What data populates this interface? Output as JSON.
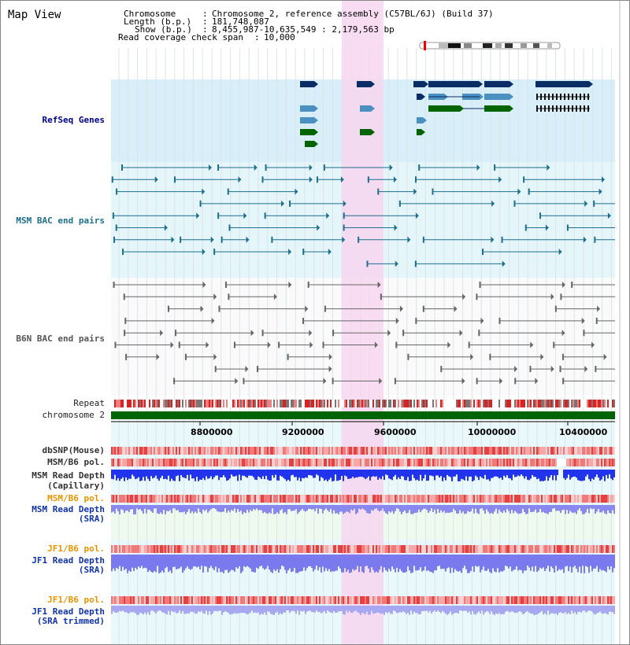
{
  "view_title": "Map View",
  "info": {
    "chromosome_label": "Chromosome",
    "chromosome_value": "Chromosome 2, reference assembly (C57BL/6J) (Build 37)",
    "length_label": "Length (b.p.)",
    "length_value": "181,748,087",
    "show_label": "Show (b.p.)",
    "show_value": "8,455,987-10,635,549 : 2,179,563 bp",
    "span_label": "Read coverage check span",
    "span_value": "10,000"
  },
  "tracks": {
    "refseq": "RefSeq Genes",
    "msm_bac": "MSM BAC end pairs",
    "b6n_bac": "B6N BAC end pairs",
    "repeat": "Repeat",
    "chromosome": "chromosome 2",
    "dbsnp": "dbSNP(Mouse)",
    "msm_b6_pol_1": "MSM/B6 pol.",
    "msm_read_depth_cap_1": "MSM Read Depth",
    "msm_read_depth_cap_2": "(Capillary)",
    "msm_b6_pol_2": "MSM/B6 pol.",
    "msm_read_depth_sra_1": "MSM Read Depth",
    "msm_read_depth_sra_2": "(SRA)",
    "jf1_b6_pol_1": "JF1/B6 pol.",
    "jf1_read_depth_sra_1": "JF1 Read Depth",
    "jf1_read_depth_sra_2": "(SRA)",
    "jf1_b6_pol_2": "JF1/B6 pol.",
    "jf1_read_depth_trim_1": "JF1 Read Depth",
    "jf1_read_depth_trim_2": "(SRA trimmed)"
  },
  "axis_ticks": [
    "8800000",
    "9200000",
    "9600000",
    "10000000",
    "10400000"
  ],
  "colors": {
    "refseq_bg": "#d8eef8",
    "msm_bg": "#e4f6fa",
    "b6n_bg": "#f0f0f0",
    "highlight": "#f7d6f0",
    "gene_dark": "#0b2d66",
    "gene_mid": "#4a90c0",
    "gene_green": "#006400",
    "bac_teal": "#1d6f8a",
    "bac_gray": "#666666",
    "chrom_green": "#006400",
    "depth_blue": "#2233ee",
    "depth_light": "#8888ee",
    "pol_red": "#ee5555"
  }
}
